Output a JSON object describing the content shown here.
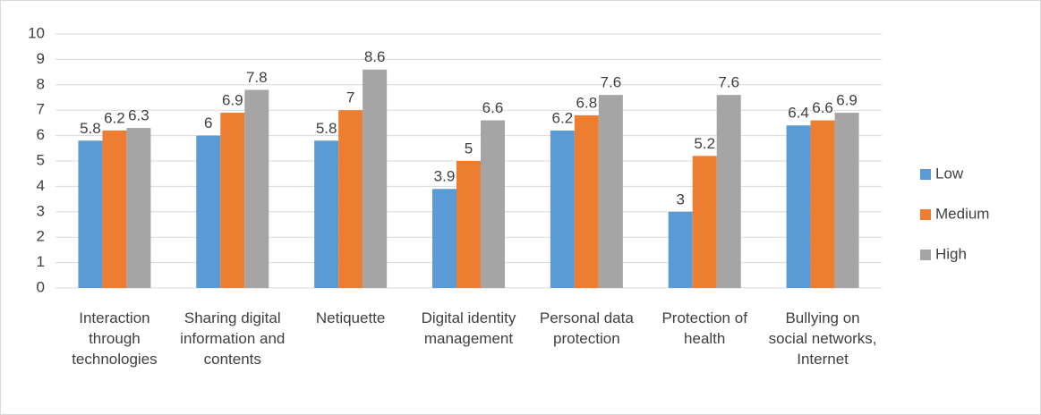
{
  "chart_data": {
    "type": "bar",
    "categories": [
      "Interaction through technologies",
      "Sharing digital information and contents",
      "Netiquette",
      "Digital identity management",
      "Personal data protection",
      "Protection of health",
      "Bullying on social networks, Internet"
    ],
    "series": [
      {
        "name": "Low",
        "color": "#5b9bd5",
        "values": [
          5.8,
          6,
          5.8,
          3.9,
          6.2,
          3,
          6.4
        ]
      },
      {
        "name": "Medium",
        "color": "#ed7d31",
        "values": [
          6.2,
          6.9,
          7,
          5,
          6.8,
          5.2,
          6.6
        ]
      },
      {
        "name": "High",
        "color": "#a5a5a5",
        "values": [
          6.3,
          7.8,
          8.6,
          6.6,
          7.6,
          7.6,
          6.9
        ]
      }
    ],
    "ylim": [
      0,
      10
    ],
    "yticks": [
      0,
      1,
      2,
      3,
      4,
      5,
      6,
      7,
      8,
      9,
      10
    ],
    "grid": true,
    "legend": "right"
  }
}
